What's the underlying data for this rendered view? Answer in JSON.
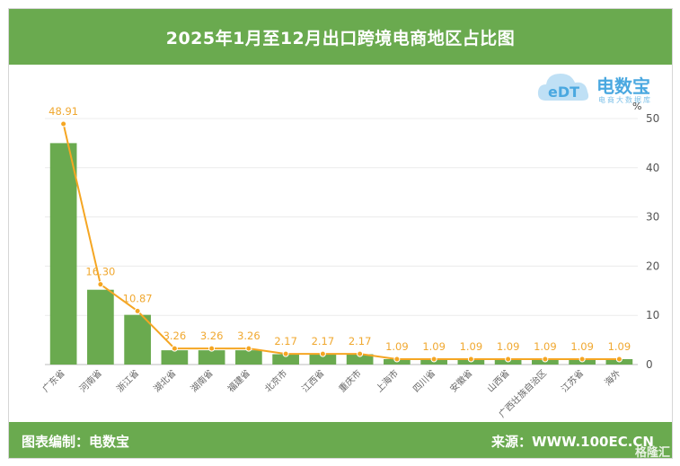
{
  "header": {
    "title": "2025年1月至12月出口跨境电商地区占比图"
  },
  "logo": {
    "name": "电数宝",
    "sub": "电商大数据库",
    "icon": "cloud-edt-icon"
  },
  "footer": {
    "credit": "图表编制：电数宝",
    "source": "来源：WWW.100EC.CN",
    "watermark": "格隆汇"
  },
  "colors": {
    "accent": "#6aaa4f",
    "bar": "#6aaa4f",
    "line": "#f5a623"
  },
  "chart_data": {
    "type": "bar",
    "title": "2025年1月至12月出口跨境电商地区占比图",
    "xlabel": "",
    "ylabel": "%",
    "categories": [
      "广东省",
      "河南省",
      "浙江省",
      "湖北省",
      "湖南省",
      "福建省",
      "北京市",
      "江西省",
      "重庆市",
      "上海市",
      "四川省",
      "安徽省",
      "山西省",
      "广西壮族自治区",
      "江苏省",
      "海外"
    ],
    "series": [
      {
        "type": "bar",
        "values": [
          45,
          15.2,
          10.1,
          2.9,
          2.9,
          2.9,
          2.1,
          2.1,
          2.1,
          1.1,
          1.1,
          1.1,
          1.1,
          1.1,
          1.1,
          1.1
        ]
      },
      {
        "type": "line",
        "values": [
          48.91,
          16.3,
          10.87,
          3.26,
          3.26,
          3.26,
          2.17,
          2.17,
          2.17,
          1.09,
          1.09,
          1.09,
          1.09,
          1.09,
          1.09,
          1.09
        ]
      }
    ],
    "data_labels": [
      "48.91",
      "16.30",
      "10.87",
      "3.26",
      "3.26",
      "3.26",
      "2.17",
      "2.17",
      "2.17",
      "1.09",
      "1.09",
      "1.09",
      "1.09",
      "1.09",
      "1.09",
      "1.09"
    ],
    "yticks": [
      0,
      10,
      20,
      30,
      40,
      50
    ],
    "ylim": [
      0,
      50
    ],
    "y_axis_side": "right",
    "grid": true,
    "legend": "none"
  }
}
